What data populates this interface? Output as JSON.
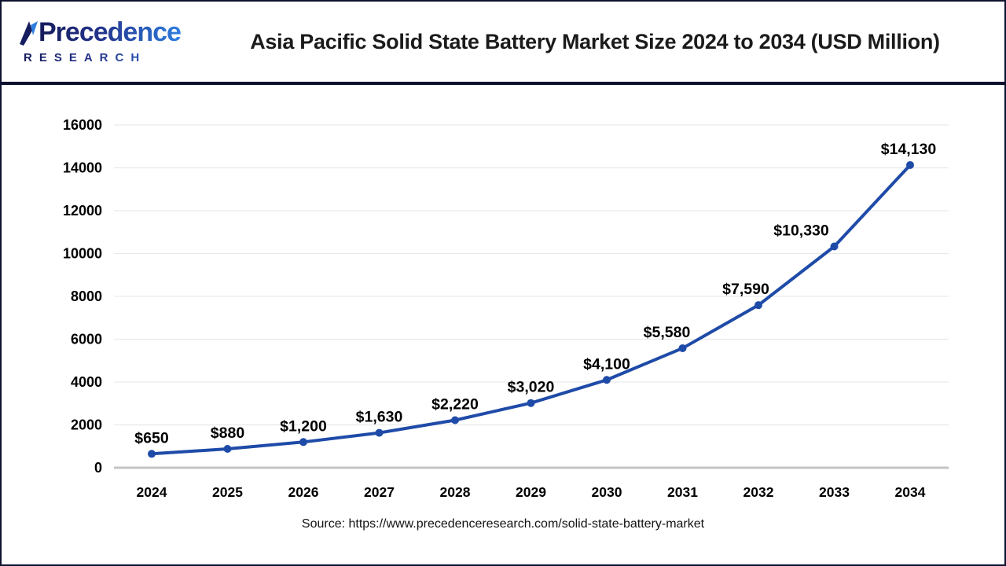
{
  "header": {
    "logo": {
      "name": "Precedence",
      "subtitle": "RESEARCH",
      "icon": "leaf-sail-icon",
      "color_dark": "#151b5a",
      "color_light": "#2e7de0"
    },
    "title": "Asia Pacific Solid State Battery Market Size 2024 to 2034 (USD Million)"
  },
  "chart_data": {
    "type": "line",
    "title": "Asia Pacific Solid State Battery Market Size 2024 to 2034 (USD Million)",
    "categories": [
      "2024",
      "2025",
      "2026",
      "2027",
      "2028",
      "2029",
      "2030",
      "2031",
      "2032",
      "2033",
      "2034"
    ],
    "values": [
      650,
      880,
      1200,
      1630,
      2220,
      3020,
      4100,
      5580,
      7590,
      10330,
      14130
    ],
    "point_labels": [
      "$650",
      "$880",
      "$1,200",
      "$1,630",
      "$2,220",
      "$3,020",
      "$4,100",
      "$5,580",
      "$7,590",
      "$10,330",
      "$14,130"
    ],
    "unit": "USD Million",
    "xlabel": "",
    "ylabel": "",
    "ylim": [
      0,
      16000
    ],
    "y_ticks": [
      0,
      2000,
      4000,
      6000,
      8000,
      10000,
      12000,
      14000,
      16000
    ],
    "grid": true,
    "legend": "none",
    "line_color": "#1f4ba8",
    "marker_color": "#1f4ba8",
    "label_color": "#000000",
    "grid_color": "#e9e9e9",
    "axis_color": "#c4c4c4",
    "tick_color": "#000000"
  },
  "footer": {
    "source": "Source: https://www.precedenceresearch.com/solid-state-battery-market"
  }
}
